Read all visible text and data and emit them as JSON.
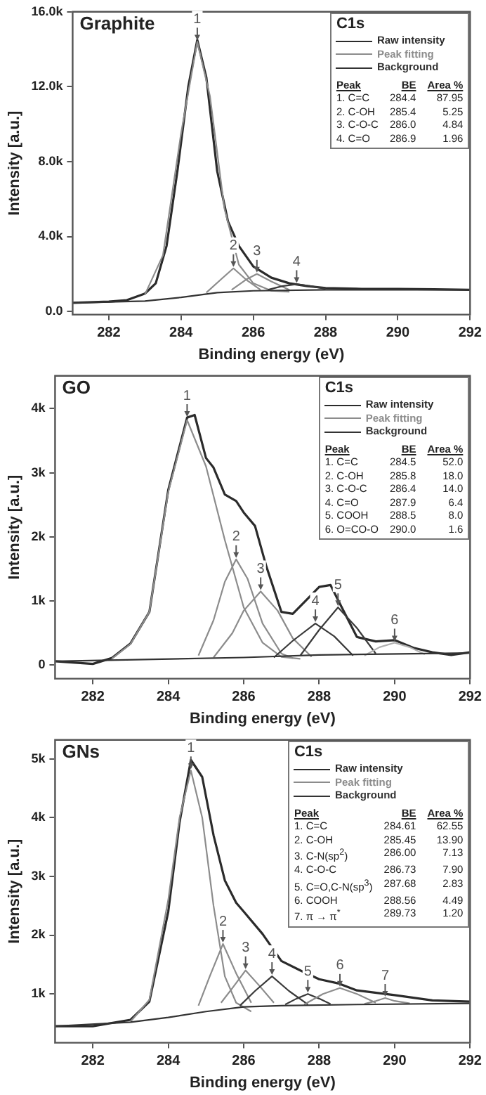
{
  "chart_data": [
    {
      "type": "line",
      "title": "Graphite",
      "legend_title": "C1s",
      "xlabel": "Binding energy (eV)",
      "ylabel": "Intensity [a.u.]",
      "legend": "top right",
      "marker": "none",
      "line_style": "solid",
      "xlim": [
        281,
        292
      ],
      "xticks": [
        282,
        284,
        286,
        288,
        290,
        292
      ],
      "ylim": [
        -170,
        16000
      ],
      "yticks": [
        {
          "value": 0,
          "label": "0.0"
        },
        {
          "value": 4000,
          "label": "4.0k"
        },
        {
          "value": 8000,
          "label": "8.0k"
        },
        {
          "value": 12000,
          "label": "12.0k"
        },
        {
          "value": 16000,
          "label": "16.0k"
        }
      ],
      "series": [
        {
          "name": "Raw intensity",
          "color": "#2b2b2b",
          "x": [
            281,
            282,
            282.5,
            283,
            283.3,
            283.6,
            283.9,
            284.2,
            284.45,
            284.7,
            285,
            285.3,
            285.6,
            286,
            286.5,
            287,
            287.5,
            288,
            289,
            290,
            291,
            292
          ],
          "values": [
            460,
            520,
            600,
            950,
            1500,
            3500,
            7500,
            12000,
            14500,
            12500,
            7500,
            4800,
            3500,
            2400,
            1800,
            1500,
            1350,
            1250,
            1200,
            1200,
            1180,
            1150
          ]
        },
        {
          "name": "Peak fitting",
          "color": "#8c8c8c",
          "x": [
            283,
            283.5,
            284,
            284.45,
            284.8,
            285.2,
            285.6,
            286,
            286.5,
            287
          ],
          "values": [
            900,
            3000,
            9500,
            14400,
            11500,
            5500,
            2500,
            1500,
            1100,
            1050
          ]
        },
        {
          "color": "#8c8c8c",
          "x": [
            284.7,
            285.1,
            285.45,
            285.8,
            286.2
          ],
          "values": [
            1000,
            1700,
            2300,
            1700,
            1150
          ]
        },
        {
          "color": "#8c8c8c",
          "x": [
            285.4,
            285.8,
            286.1,
            286.5,
            287
          ],
          "values": [
            1150,
            1700,
            2000,
            1600,
            1150
          ]
        },
        {
          "color": "#3a3a3a",
          "x": [
            286.4,
            286.8,
            287.2,
            287.6,
            288
          ],
          "values": [
            1150,
            1350,
            1450,
            1350,
            1200
          ]
        },
        {
          "name": "Background",
          "color": "#333333",
          "x": [
            281,
            283,
            284,
            285,
            286,
            288,
            292
          ],
          "values": [
            460,
            550,
            750,
            1000,
            1100,
            1150,
            1150
          ]
        }
      ],
      "annotations": [
        "Peak",
        "BE",
        "Area %",
        "1. C=C",
        "284.4",
        "87.95",
        "2. C-OH",
        "285.4",
        "5.25",
        "3. C-O-C",
        "286.0",
        "4.84",
        "4. C=O",
        "286.9",
        "1.96",
        {
          "text": "1",
          "x": 284.45,
          "y": 14400
        },
        {
          "text": "2",
          "x": 285.45,
          "y": 2300
        },
        {
          "text": "3",
          "x": 286.1,
          "y": 2000
        },
        {
          "text": "4",
          "x": 287.2,
          "y": 1450
        }
      ]
    },
    {
      "type": "line",
      "title": "GO",
      "legend_title": "C1s",
      "xlabel": "Binding energy (eV)",
      "ylabel": "Intensity [a.u.]",
      "legend": "top right",
      "marker": "none",
      "line_style": "solid",
      "xlim": [
        281,
        292
      ],
      "xticks": [
        282,
        284,
        286,
        288,
        290,
        292
      ],
      "ylim": [
        -210,
        4510
      ],
      "yticks": [
        {
          "value": 0,
          "label": "0"
        },
        {
          "value": 1000,
          "label": "1k"
        },
        {
          "value": 2000,
          "label": "2k"
        },
        {
          "value": 3000,
          "label": "3k"
        },
        {
          "value": 4000,
          "label": "4k"
        }
      ],
      "series": [
        {
          "name": "Raw intensity",
          "color": "#2b2b2b",
          "x": [
            281,
            282,
            282.5,
            283,
            283.5,
            284,
            284.5,
            284.7,
            285,
            285.2,
            285.5,
            285.8,
            286,
            286.3,
            286.6,
            287,
            287.3,
            287.7,
            288,
            288.3,
            288.6,
            289,
            289.5,
            290,
            290.5,
            291,
            291.5,
            292
          ],
          "values": [
            60,
            20,
            110,
            340,
            830,
            2730,
            3860,
            3900,
            3230,
            3080,
            2660,
            2560,
            2380,
            2170,
            1540,
            830,
            800,
            1040,
            1220,
            1250,
            900,
            440,
            370,
            390,
            270,
            200,
            160,
            200
          ]
        },
        {
          "name": "Peak fitting",
          "color": "#8c8c8c",
          "x": [
            282.5,
            283,
            283.5,
            284,
            284.5,
            285,
            285.5,
            286,
            286.5,
            287,
            287.5
          ],
          "values": [
            100,
            330,
            830,
            2700,
            3820,
            3100,
            1950,
            900,
            350,
            130,
            100
          ]
        },
        {
          "color": "#8c8c8c",
          "x": [
            284.8,
            285.2,
            285.5,
            285.8,
            286.1,
            286.5,
            287,
            287.3
          ],
          "values": [
            150,
            700,
            1300,
            1650,
            1350,
            650,
            180,
            110
          ]
        },
        {
          "color": "#8c8c8c",
          "x": [
            285.2,
            285.7,
            286,
            286.45,
            286.9,
            287.3,
            287.8
          ],
          "values": [
            120,
            500,
            850,
            1150,
            850,
            420,
            130
          ]
        },
        {
          "color": "#3a3a3a",
          "x": [
            286.8,
            287.3,
            287.9,
            288.4,
            288.9
          ],
          "values": [
            120,
            380,
            650,
            450,
            150
          ]
        },
        {
          "color": "#3a3a3a",
          "x": [
            287.5,
            288,
            288.5,
            289,
            289.5
          ],
          "values": [
            150,
            550,
            900,
            580,
            180
          ]
        },
        {
          "color": "#b0b0b0",
          "x": [
            289.2,
            289.6,
            290,
            290.4,
            290.8
          ],
          "values": [
            150,
            280,
            350,
            280,
            170
          ]
        },
        {
          "name": "Background",
          "color": "#333333",
          "x": [
            281,
            286,
            288,
            292
          ],
          "values": [
            60,
            120,
            160,
            190
          ]
        }
      ],
      "annotations": [
        "Peak",
        "BE",
        "Area %",
        "1. C=C",
        "284.5",
        "52.0",
        "2. C-OH",
        "285.8",
        "18.0",
        "3. C-O-C",
        "286.4",
        "14.0",
        "4. C=O",
        "287.9",
        "6.4",
        "5. COOH",
        "288.5",
        "8.0",
        "6. O=CO-O",
        "290.0",
        "1.6",
        {
          "text": "1",
          "x": 284.5,
          "y": 3850
        },
        {
          "text": "2",
          "x": 285.8,
          "y": 1650
        },
        {
          "text": "3",
          "x": 286.45,
          "y": 1150
        },
        {
          "text": "4",
          "x": 287.9,
          "y": 650
        },
        {
          "text": "5",
          "x": 288.5,
          "y": 900
        },
        {
          "text": "6",
          "x": 290.0,
          "y": 350
        }
      ]
    },
    {
      "type": "line",
      "title": "GNs",
      "legend_title": "C1s",
      "xlabel": "Binding energy (eV)",
      "ylabel": "Intensity [a.u.]",
      "legend": "top right",
      "marker": "none",
      "line_style": "solid",
      "xlim": [
        281,
        292
      ],
      "xticks": [
        282,
        284,
        286,
        288,
        290,
        292
      ],
      "ylim": [
        170,
        5320
      ],
      "yticks": [
        {
          "value": 1000,
          "label": "1k"
        },
        {
          "value": 2000,
          "label": "2k"
        },
        {
          "value": 3000,
          "label": "3k"
        },
        {
          "value": 4000,
          "label": "4k"
        },
        {
          "value": 5000,
          "label": "5k"
        }
      ],
      "series": [
        {
          "name": "Raw intensity",
          "color": "#2b2b2b",
          "x": [
            281,
            282,
            283,
            283.5,
            284,
            284.3,
            284.6,
            284.9,
            285.2,
            285.5,
            285.8,
            286,
            286.5,
            287,
            287.5,
            288,
            288.5,
            289,
            290,
            291,
            292
          ],
          "values": [
            450,
            450,
            560,
            870,
            2400,
            3920,
            4980,
            4690,
            3700,
            2930,
            2550,
            2400,
            2020,
            1560,
            1400,
            1250,
            1180,
            1060,
            980,
            890,
            870
          ]
        },
        {
          "name": "Peak fitting",
          "color": "#8c8c8c",
          "x": [
            283,
            283.5,
            284,
            284.3,
            284.6,
            284.9,
            285.2,
            285.5,
            285.8,
            286.2
          ],
          "values": [
            530,
            900,
            2600,
            4000,
            4800,
            4000,
            2500,
            1300,
            850,
            700
          ]
        },
        {
          "color": "#8c8c8c",
          "x": [
            284.8,
            285.1,
            285.45,
            285.8,
            286.2
          ],
          "values": [
            800,
            1300,
            1850,
            1350,
            850
          ]
        },
        {
          "color": "#8c8c8c",
          "x": [
            285.4,
            285.7,
            286.05,
            286.4,
            286.8
          ],
          "values": [
            850,
            1100,
            1400,
            1150,
            850
          ]
        },
        {
          "color": "#3a3a3a",
          "x": [
            285.9,
            286.3,
            286.75,
            287.2,
            287.7
          ],
          "values": [
            800,
            1050,
            1300,
            1050,
            820
          ]
        },
        {
          "color": "#3a3a3a",
          "x": [
            287.1,
            287.4,
            287.7,
            288,
            288.3
          ],
          "values": [
            820,
            920,
            1000,
            920,
            830
          ]
        },
        {
          "color": "#8c8c8c",
          "x": [
            287.6,
            288.1,
            288.55,
            289,
            289.5
          ],
          "values": [
            820,
            1000,
            1100,
            1000,
            850
          ]
        },
        {
          "color": "#8c8c8c",
          "x": [
            289.2,
            289.5,
            289.75,
            290,
            290.4
          ],
          "values": [
            830,
            880,
            930,
            880,
            840
          ]
        },
        {
          "name": "Background",
          "color": "#333333",
          "x": [
            281,
            283,
            284,
            285,
            286,
            287,
            289,
            292
          ],
          "values": [
            450,
            520,
            600,
            700,
            780,
            800,
            820,
            840
          ]
        }
      ],
      "annotations": [
        "Peak",
        "BE",
        "Area %",
        "1. C=C",
        "284.61",
        "62.55",
        "2. C-OH",
        "285.45",
        "13.90",
        "3. C-N(sp$^{2}$)",
        "286.00",
        "7.13",
        "4. C-O-C",
        "286.73",
        "7.90",
        "5. C=O,C-N(sp$^{3}$)",
        "287.68",
        "2.83",
        "6. COOH",
        "288.56",
        "4.49",
        "7. π → π$^{*}$",
        "289.73",
        "1.20",
        {
          "text": "1",
          "x": 284.6,
          "y": 4800
        },
        {
          "text": "2",
          "x": 285.45,
          "y": 1850
        },
        {
          "text": "3",
          "x": 286.05,
          "y": 1400
        },
        {
          "text": "4",
          "x": 286.75,
          "y": 1300
        },
        {
          "text": "5",
          "x": 287.7,
          "y": 1000
        },
        {
          "text": "6",
          "x": 288.55,
          "y": 1100
        },
        {
          "text": "7",
          "x": 289.75,
          "y": 930
        }
      ]
    }
  ]
}
